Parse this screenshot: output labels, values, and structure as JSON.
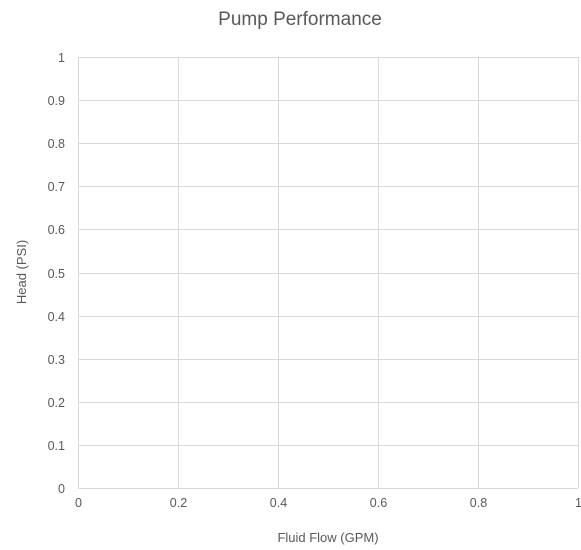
{
  "chart_data": {
    "type": "scatter",
    "title": "Pump Performance",
    "xlabel": "Fluid Flow (GPM)",
    "ylabel": "Head (PSI)",
    "xlim": [
      0,
      1
    ],
    "ylim": [
      0,
      1
    ],
    "x_ticks": [
      "0",
      "0.2",
      "0.4",
      "0.6",
      "0.8",
      "1"
    ],
    "x_tick_values": [
      0,
      0.2,
      0.4,
      0.6,
      0.8,
      1
    ],
    "y_ticks": [
      "0",
      "0.1",
      "0.2",
      "0.3",
      "0.4",
      "0.5",
      "0.6",
      "0.7",
      "0.8",
      "0.9",
      "1"
    ],
    "y_tick_values": [
      0,
      0.1,
      0.2,
      0.3,
      0.4,
      0.5,
      0.6,
      0.7,
      0.8,
      0.9,
      1
    ],
    "grid": true,
    "legend": "none",
    "series": [],
    "colors": {
      "gridline": "#d9d9d9",
      "text": "#595959",
      "background": "#ffffff"
    }
  }
}
